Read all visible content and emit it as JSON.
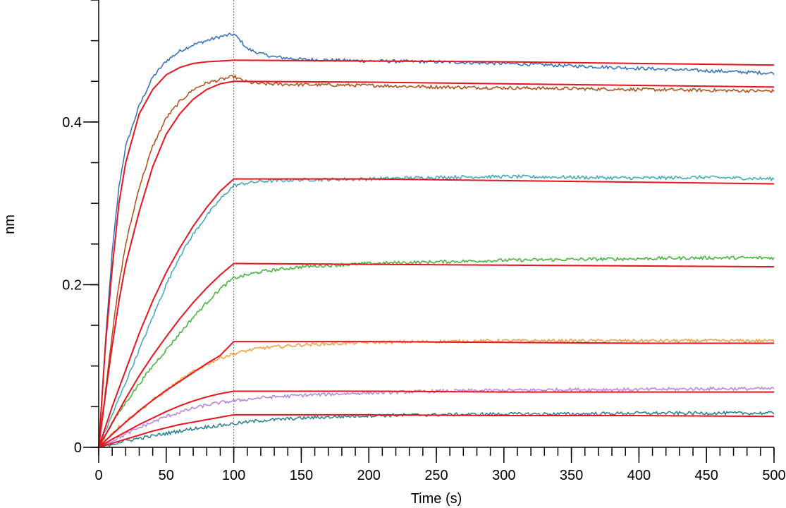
{
  "chart_data": {
    "type": "line",
    "title": "",
    "xlabel": "Time (s)",
    "ylabel": "nm",
    "xlim": [
      0,
      500
    ],
    "ylim": [
      0,
      0.55
    ],
    "x_ticks": [
      0,
      50,
      100,
      150,
      200,
      250,
      300,
      350,
      400,
      450,
      500
    ],
    "x_tick_labels": [
      "0",
      "50",
      "100",
      "150",
      "200",
      "250",
      "300",
      "350",
      "400",
      "450",
      "500"
    ],
    "y_ticks": [
      0,
      0.2,
      0.4
    ],
    "y_tick_labels": [
      "0",
      "0.2",
      "0.4"
    ],
    "legend": "none",
    "grid": false,
    "association_end": 100,
    "marker_line": {
      "x": 100,
      "color": "#d23c3c",
      "style": "dotted"
    },
    "fit_color": "#e8141e",
    "series": [
      {
        "color": "#2e6ebe",
        "x": [
          0,
          5,
          10,
          15,
          20,
          30,
          40,
          50,
          60,
          70,
          80,
          90,
          100,
          105,
          110,
          120,
          130,
          150,
          200,
          250,
          300,
          350,
          400,
          450,
          500
        ],
        "y": [
          0,
          0.13,
          0.24,
          0.32,
          0.37,
          0.42,
          0.455,
          0.475,
          0.487,
          0.495,
          0.5,
          0.505,
          0.508,
          0.5,
          0.49,
          0.484,
          0.48,
          0.477,
          0.475,
          0.474,
          0.472,
          0.469,
          0.466,
          0.463,
          0.46
        ],
        "fit_x": [
          0,
          5,
          10,
          15,
          20,
          30,
          40,
          50,
          60,
          70,
          80,
          90,
          100,
          200,
          300,
          400,
          500
        ],
        "fit_y": [
          0,
          0.125,
          0.22,
          0.3,
          0.35,
          0.41,
          0.44,
          0.458,
          0.467,
          0.472,
          0.474,
          0.475,
          0.476,
          0.475,
          0.474,
          0.472,
          0.47
        ]
      },
      {
        "color": "#b04a12",
        "x": [
          0,
          5,
          10,
          15,
          20,
          30,
          40,
          50,
          60,
          70,
          80,
          90,
          100,
          105,
          110,
          120,
          150,
          200,
          250,
          300,
          350,
          400,
          450,
          500
        ],
        "y": [
          0,
          0.07,
          0.14,
          0.2,
          0.25,
          0.32,
          0.37,
          0.405,
          0.425,
          0.44,
          0.448,
          0.452,
          0.456,
          0.452,
          0.449,
          0.447,
          0.446,
          0.445,
          0.443,
          0.442,
          0.441,
          0.44,
          0.439,
          0.438
        ],
        "fit_x": [
          0,
          5,
          10,
          15,
          20,
          30,
          40,
          50,
          60,
          70,
          80,
          90,
          100,
          200,
          300,
          400,
          500
        ],
        "fit_y": [
          0,
          0.065,
          0.125,
          0.18,
          0.225,
          0.29,
          0.345,
          0.385,
          0.41,
          0.428,
          0.44,
          0.447,
          0.45,
          0.449,
          0.447,
          0.445,
          0.443
        ]
      },
      {
        "color": "#3ba9b9",
        "x": [
          0,
          10,
          20,
          30,
          40,
          50,
          60,
          70,
          80,
          90,
          100,
          110,
          120,
          150,
          200,
          250,
          300,
          350,
          400,
          450,
          500
        ],
        "y": [
          0,
          0.04,
          0.08,
          0.12,
          0.16,
          0.2,
          0.235,
          0.262,
          0.285,
          0.305,
          0.322,
          0.325,
          0.327,
          0.329,
          0.33,
          0.332,
          0.333,
          0.332,
          0.331,
          0.332,
          0.33
        ],
        "fit_x": [
          0,
          10,
          20,
          30,
          40,
          50,
          60,
          70,
          80,
          90,
          100,
          200,
          300,
          400,
          500
        ],
        "fit_y": [
          0,
          0.05,
          0.095,
          0.14,
          0.18,
          0.215,
          0.245,
          0.272,
          0.295,
          0.315,
          0.33,
          0.33,
          0.328,
          0.326,
          0.324
        ]
      },
      {
        "color": "#3cb432",
        "x": [
          0,
          10,
          20,
          30,
          40,
          50,
          60,
          70,
          80,
          90,
          100,
          110,
          120,
          150,
          200,
          250,
          300,
          350,
          400,
          450,
          500
        ],
        "y": [
          0,
          0.03,
          0.055,
          0.078,
          0.1,
          0.12,
          0.14,
          0.16,
          0.178,
          0.195,
          0.208,
          0.212,
          0.216,
          0.222,
          0.226,
          0.228,
          0.23,
          0.231,
          0.232,
          0.233,
          0.233
        ],
        "fit_x": [
          0,
          10,
          20,
          30,
          40,
          50,
          60,
          70,
          80,
          90,
          100,
          200,
          300,
          400,
          500
        ],
        "fit_y": [
          0,
          0.03,
          0.06,
          0.088,
          0.113,
          0.136,
          0.158,
          0.178,
          0.196,
          0.212,
          0.226,
          0.225,
          0.224,
          0.223,
          0.222
        ]
      },
      {
        "color": "#f39e3c",
        "x": [
          0,
          10,
          20,
          30,
          40,
          50,
          60,
          70,
          80,
          90,
          100,
          110,
          120,
          150,
          200,
          250,
          300,
          350,
          400,
          450,
          500
        ],
        "y": [
          0,
          0.018,
          0.032,
          0.045,
          0.058,
          0.07,
          0.082,
          0.093,
          0.102,
          0.11,
          0.115,
          0.119,
          0.122,
          0.126,
          0.129,
          0.13,
          0.131,
          0.131,
          0.131,
          0.131,
          0.131
        ],
        "fit_x": [
          0,
          10,
          20,
          30,
          40,
          50,
          60,
          70,
          80,
          90,
          100,
          200,
          300,
          400,
          500
        ],
        "fit_y": [
          0,
          0.016,
          0.031,
          0.045,
          0.058,
          0.07,
          0.081,
          0.092,
          0.103,
          0.113,
          0.13,
          0.13,
          0.129,
          0.128,
          0.128
        ]
      },
      {
        "color": "#b580e0",
        "x": [
          0,
          10,
          20,
          30,
          40,
          50,
          60,
          70,
          80,
          90,
          100,
          110,
          120,
          150,
          200,
          250,
          300,
          350,
          400,
          450,
          500
        ],
        "y": [
          0,
          0.008,
          0.016,
          0.024,
          0.031,
          0.038,
          0.043,
          0.048,
          0.052,
          0.055,
          0.057,
          0.059,
          0.061,
          0.064,
          0.067,
          0.069,
          0.07,
          0.071,
          0.071,
          0.072,
          0.072
        ],
        "fit_x": [
          0,
          10,
          20,
          30,
          40,
          50,
          60,
          70,
          80,
          90,
          100,
          200,
          300,
          400,
          500
        ],
        "fit_y": [
          0,
          0.01,
          0.019,
          0.028,
          0.036,
          0.044,
          0.051,
          0.057,
          0.062,
          0.066,
          0.069,
          0.069,
          0.068,
          0.068,
          0.068
        ]
      },
      {
        "color": "#237e8a",
        "x": [
          0,
          10,
          20,
          30,
          40,
          50,
          60,
          70,
          80,
          90,
          100,
          110,
          120,
          150,
          200,
          250,
          300,
          350,
          400,
          450,
          500
        ],
        "y": [
          0,
          0.004,
          0.008,
          0.011,
          0.014,
          0.017,
          0.02,
          0.023,
          0.025,
          0.027,
          0.029,
          0.031,
          0.033,
          0.036,
          0.039,
          0.04,
          0.041,
          0.041,
          0.042,
          0.042,
          0.042
        ],
        "fit_x": [
          0,
          10,
          20,
          30,
          40,
          50,
          60,
          70,
          80,
          90,
          100,
          200,
          300,
          400,
          500
        ],
        "fit_y": [
          0,
          0.005,
          0.01,
          0.015,
          0.02,
          0.024,
          0.028,
          0.031,
          0.034,
          0.037,
          0.04,
          0.04,
          0.039,
          0.039,
          0.038
        ]
      }
    ]
  }
}
